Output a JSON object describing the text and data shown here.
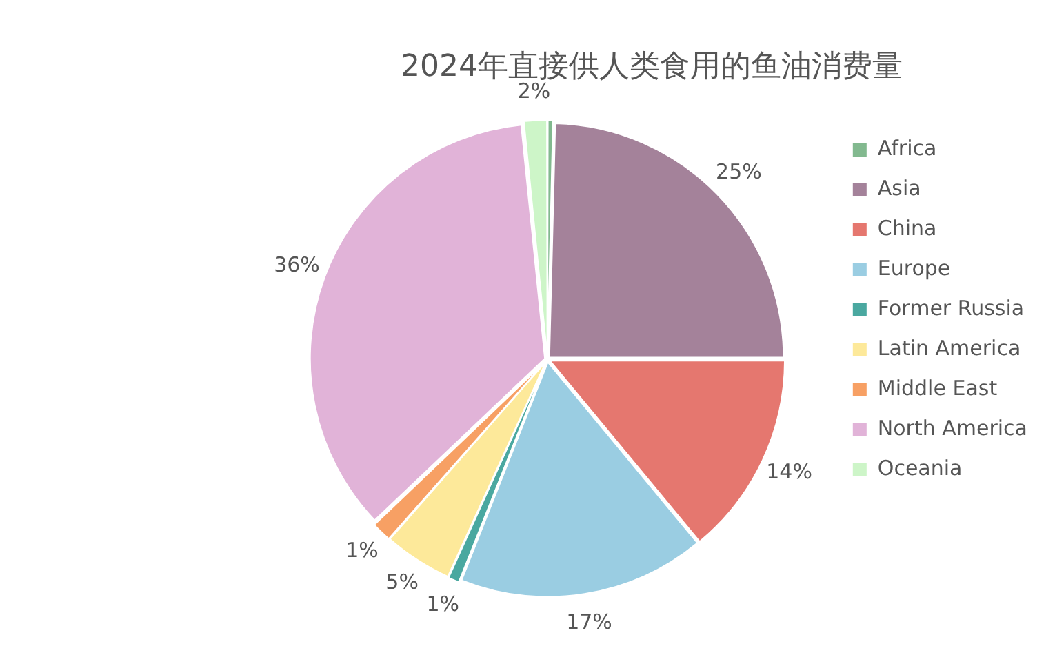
{
  "chart_data": {
    "type": "pie",
    "title": "2024年直接供人类食用的鱼油消费量",
    "categories": [
      "Africa",
      "Asia",
      "China",
      "Europe",
      "Former Russia",
      "Latin America",
      "Middle East",
      "North America",
      "Oceania"
    ],
    "values": [
      0.4,
      24.6,
      14.0,
      17.0,
      0.8,
      4.7,
      1.4,
      35.5,
      1.6
    ],
    "value_labels": [
      null,
      "25%",
      "14%",
      "17%",
      "1%",
      "5%",
      "1%",
      "36%",
      "2%"
    ],
    "colors": [
      "#82b98f",
      "#a4829a",
      "#e5776f",
      "#9acde2",
      "#4aa8a0",
      "#fde99a",
      "#f7a064",
      "#e1b3d8",
      "#cdf5c8"
    ],
    "legend": "right"
  }
}
